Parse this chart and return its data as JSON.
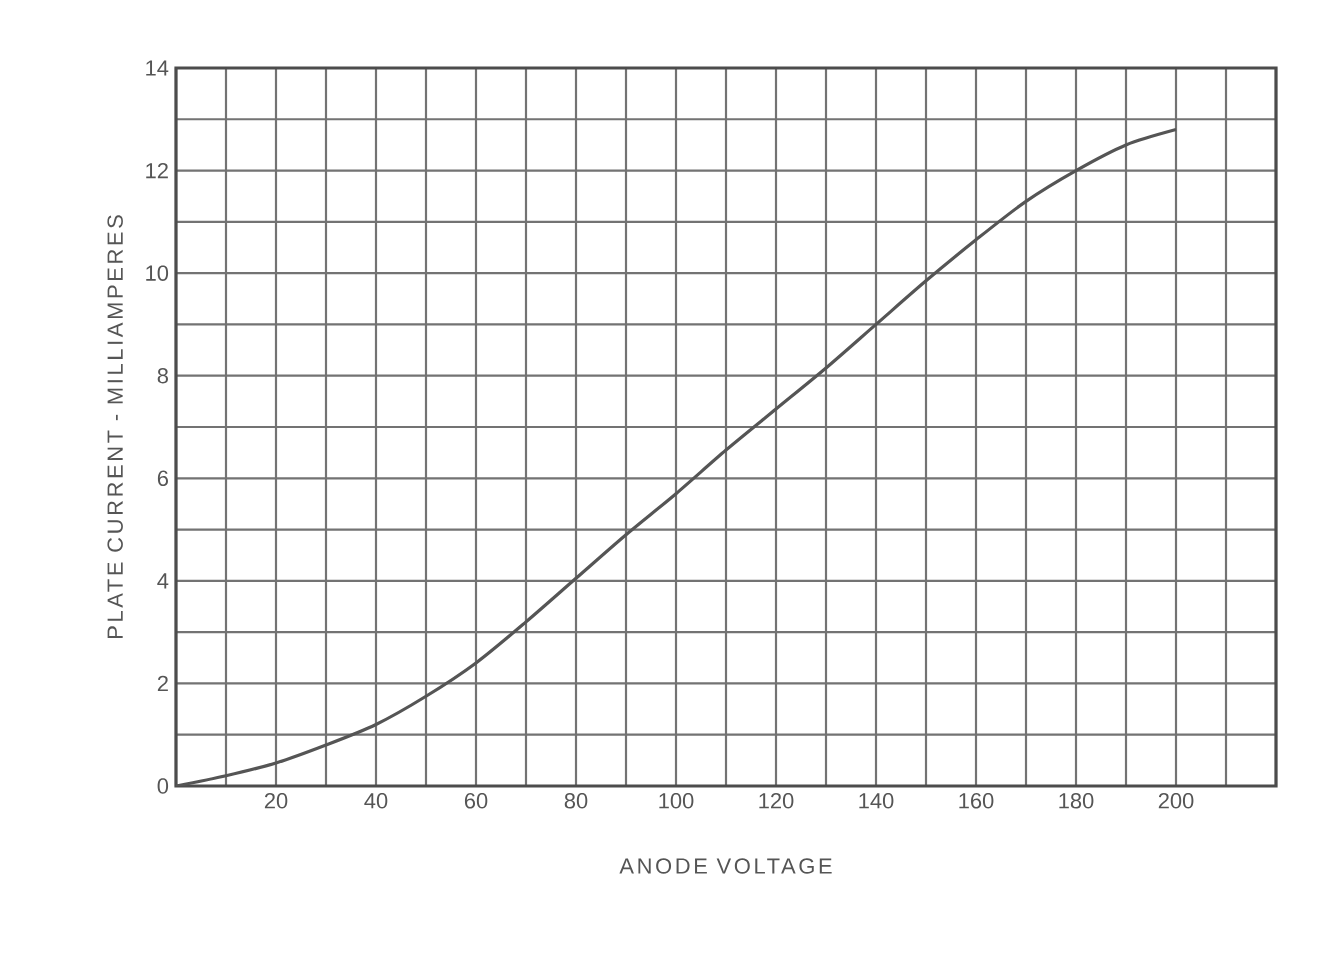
{
  "chart_data": {
    "type": "line",
    "xlabel": "ANODE  VOLTAGE",
    "ylabel": "PLATE CURRENT - MILLIAMPERES",
    "x": [
      0,
      10,
      20,
      30,
      40,
      50,
      60,
      70,
      80,
      90,
      100,
      110,
      120,
      130,
      140,
      150,
      160,
      170,
      180,
      190,
      200
    ],
    "series": [
      {
        "color": "#555555",
        "values": [
          0,
          0.2,
          0.45,
          0.8,
          1.2,
          1.75,
          2.4,
          3.2,
          4.05,
          4.9,
          5.7,
          6.55,
          7.35,
          8.15,
          9.0,
          9.85,
          10.65,
          11.4,
          12.0,
          12.5,
          12.8
        ]
      }
    ],
    "xlim": [
      0,
      220
    ],
    "ylim": [
      0,
      14
    ],
    "xticks": [
      {
        "value": 0,
        "label": null
      },
      {
        "value": 10,
        "label": null
      },
      20,
      {
        "value": 30,
        "label": null
      },
      40,
      {
        "value": 50,
        "label": null
      },
      60,
      {
        "value": 70,
        "label": null
      },
      80,
      {
        "value": 90,
        "label": null
      },
      100,
      {
        "value": 110,
        "label": null
      },
      120,
      {
        "value": 130,
        "label": null
      },
      140,
      {
        "value": 150,
        "label": null
      },
      160,
      {
        "value": 170,
        "label": null
      },
      180,
      {
        "value": 190,
        "label": null
      },
      200,
      {
        "value": 210,
        "label": null
      },
      {
        "value": 220,
        "label": null
      }
    ],
    "yticks": [
      0,
      {
        "value": 1,
        "label": null
      },
      2,
      {
        "value": 3,
        "label": null
      },
      4,
      {
        "value": 5,
        "label": null
      },
      6,
      {
        "value": 7,
        "label": null
      },
      8,
      {
        "value": 9,
        "label": null
      },
      10,
      {
        "value": 11,
        "label": null
      },
      12,
      {
        "value": 13,
        "label": null
      },
      14
    ],
    "grid": true
  }
}
